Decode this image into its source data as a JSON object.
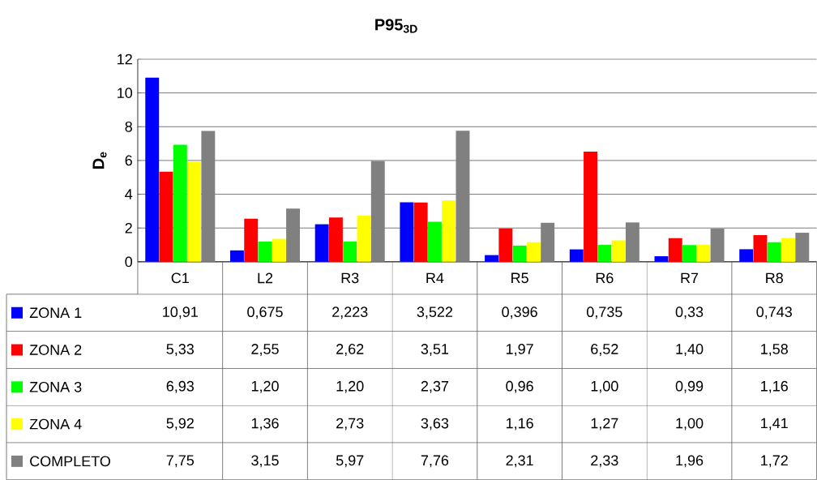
{
  "chart_data": {
    "type": "bar",
    "title": "P95$_{3D}$",
    "ylabel": "D$_{e}$",
    "categories": [
      "C1",
      "L2",
      "R3",
      "R4",
      "R5",
      "R6",
      "R7",
      "R8"
    ],
    "series": [
      {
        "name": "ZONA 1",
        "color": "#0000ff",
        "values": [
          10.91,
          0.675,
          2.223,
          3.522,
          0.396,
          0.735,
          0.33,
          0.743
        ],
        "value_labels": [
          "10,91",
          "0,675",
          "2,223",
          "3,522",
          "0,396",
          "0,735",
          "0,33",
          "0,743"
        ]
      },
      {
        "name": "ZONA 2",
        "color": "#ff0000",
        "values": [
          5.33,
          2.55,
          2.62,
          3.51,
          1.97,
          6.52,
          1.4,
          1.58
        ],
        "value_labels": [
          "5,33",
          "2,55",
          "2,62",
          "3,51",
          "1,97",
          "6,52",
          "1,40",
          "1,58"
        ]
      },
      {
        "name": "ZONA 3",
        "color": "#00ff00",
        "values": [
          6.93,
          1.2,
          1.2,
          2.37,
          0.96,
          1.0,
          0.99,
          1.16
        ],
        "value_labels": [
          "6,93",
          "1,20",
          "1,20",
          "2,37",
          "0,96",
          "1,00",
          "0,99",
          "1,16"
        ]
      },
      {
        "name": "ZONA 4",
        "color": "#ffff00",
        "values": [
          5.92,
          1.36,
          2.73,
          3.63,
          1.16,
          1.27,
          1.0,
          1.41
        ],
        "value_labels": [
          "5,92",
          "1,36",
          "2,73",
          "3,63",
          "1,16",
          "1,27",
          "1,00",
          "1,41"
        ]
      },
      {
        "name": "COMPLETO",
        "color": "#808080",
        "values": [
          7.75,
          3.15,
          5.97,
          7.76,
          2.31,
          2.33,
          1.96,
          1.72
        ],
        "value_labels": [
          "7,75",
          "3,15",
          "5,97",
          "7,76",
          "2,31",
          "2,33",
          "1,96",
          "1,72"
        ]
      }
    ],
    "ylim": [
      0,
      12
    ],
    "yticks": [
      0,
      2,
      4,
      6,
      8,
      10,
      12
    ],
    "grid": "y",
    "legend": "bottom"
  }
}
